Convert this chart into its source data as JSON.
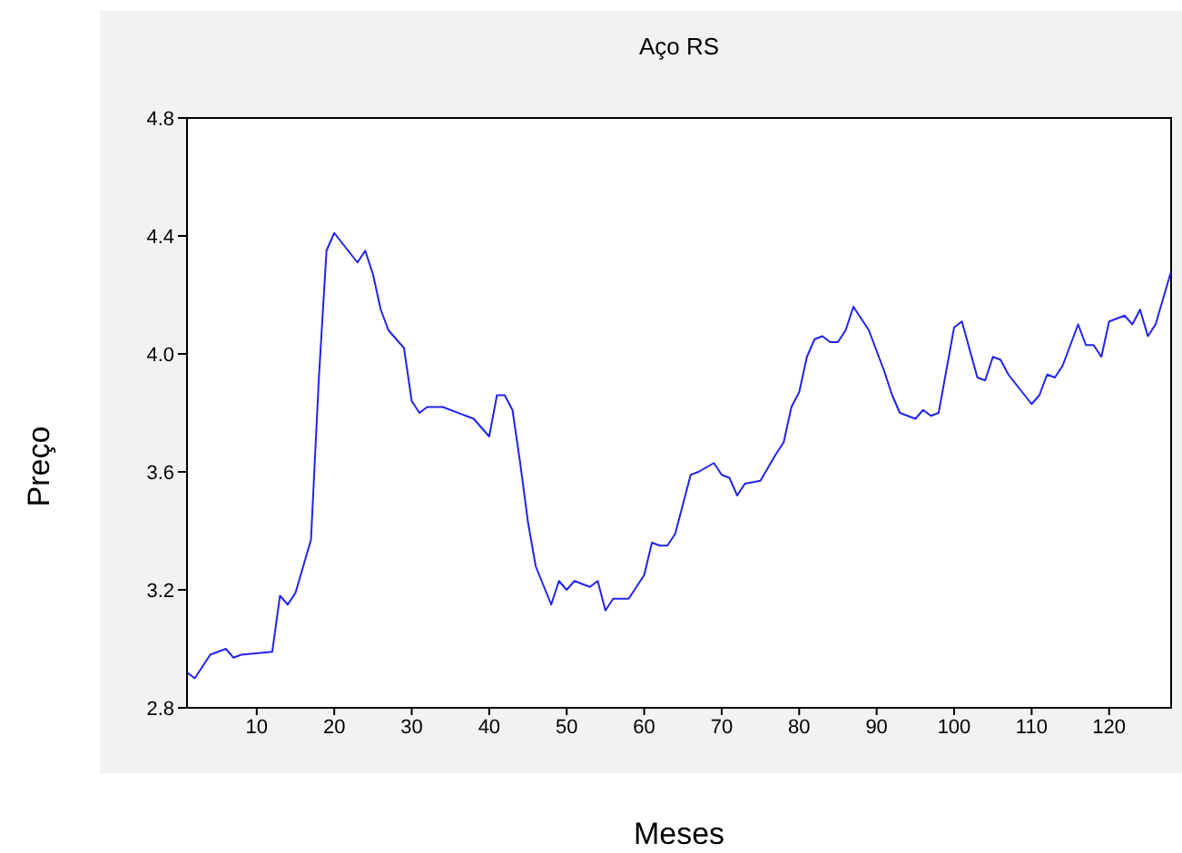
{
  "chart_data": {
    "type": "line",
    "title": "Aço RS",
    "xlabel": "Meses",
    "ylabel": "Preço",
    "x": [
      1,
      2,
      4,
      6,
      7,
      8,
      12,
      13,
      14,
      15,
      17,
      18,
      19,
      20,
      23,
      24,
      25,
      26,
      27,
      29,
      30,
      31,
      32,
      34,
      37,
      38,
      40,
      41,
      42,
      43,
      44,
      45,
      46,
      48,
      49,
      50,
      51,
      53,
      54,
      55,
      56,
      58,
      59,
      60,
      61,
      62,
      63,
      64,
      66,
      67,
      69,
      70,
      71,
      72,
      73,
      75,
      77,
      78,
      79,
      80,
      81,
      82,
      83,
      84,
      85,
      86,
      87,
      89,
      91,
      92,
      93,
      95,
      96,
      97,
      98,
      100,
      101,
      103,
      104,
      105,
      106,
      107,
      110,
      111,
      112,
      113,
      114,
      116,
      117,
      118,
      119,
      120,
      122,
      123,
      124,
      125,
      126,
      128
    ],
    "series": [
      {
        "color": "#2222ee",
        "values": [
          2.92,
          2.9,
          2.98,
          3.0,
          2.97,
          2.98,
          2.99,
          3.18,
          3.15,
          3.19,
          3.37,
          3.91,
          4.35,
          4.41,
          4.31,
          4.35,
          4.27,
          4.15,
          4.08,
          4.02,
          3.84,
          3.8,
          3.82,
          3.82,
          3.79,
          3.78,
          3.72,
          3.86,
          3.86,
          3.81,
          3.63,
          3.43,
          3.28,
          3.15,
          3.23,
          3.2,
          3.23,
          3.21,
          3.23,
          3.13,
          3.17,
          3.17,
          3.21,
          3.25,
          3.36,
          3.35,
          3.35,
          3.39,
          3.59,
          3.6,
          3.63,
          3.59,
          3.58,
          3.52,
          3.56,
          3.57,
          3.66,
          3.7,
          3.82,
          3.87,
          3.99,
          4.05,
          4.06,
          4.04,
          4.04,
          4.08,
          4.16,
          4.08,
          3.94,
          3.86,
          3.8,
          3.78,
          3.81,
          3.79,
          3.8,
          4.09,
          4.11,
          3.92,
          3.91,
          3.99,
          3.98,
          3.93,
          3.83,
          3.86,
          3.93,
          3.92,
          3.96,
          4.1,
          4.03,
          4.03,
          3.99,
          4.11,
          4.13,
          4.1,
          4.15,
          4.06,
          4.1,
          4.28
        ]
      }
    ],
    "xlim": [
      1,
      128
    ],
    "xticks": [
      10,
      20,
      30,
      40,
      50,
      60,
      70,
      80,
      90,
      100,
      110,
      120
    ],
    "ylim": [
      2.8,
      4.8
    ],
    "yticks": [
      {
        "value": 2.8,
        "label": "2.8"
      },
      {
        "value": 3.2,
        "label": "3.2"
      },
      {
        "value": 3.6,
        "label": "3.6"
      },
      {
        "value": 4.0,
        "label": "4.0"
      },
      {
        "value": 4.4,
        "label": "4.4"
      },
      {
        "value": 4.8,
        "label": "4.8"
      }
    ],
    "marker": "none",
    "line_style": "solid"
  }
}
